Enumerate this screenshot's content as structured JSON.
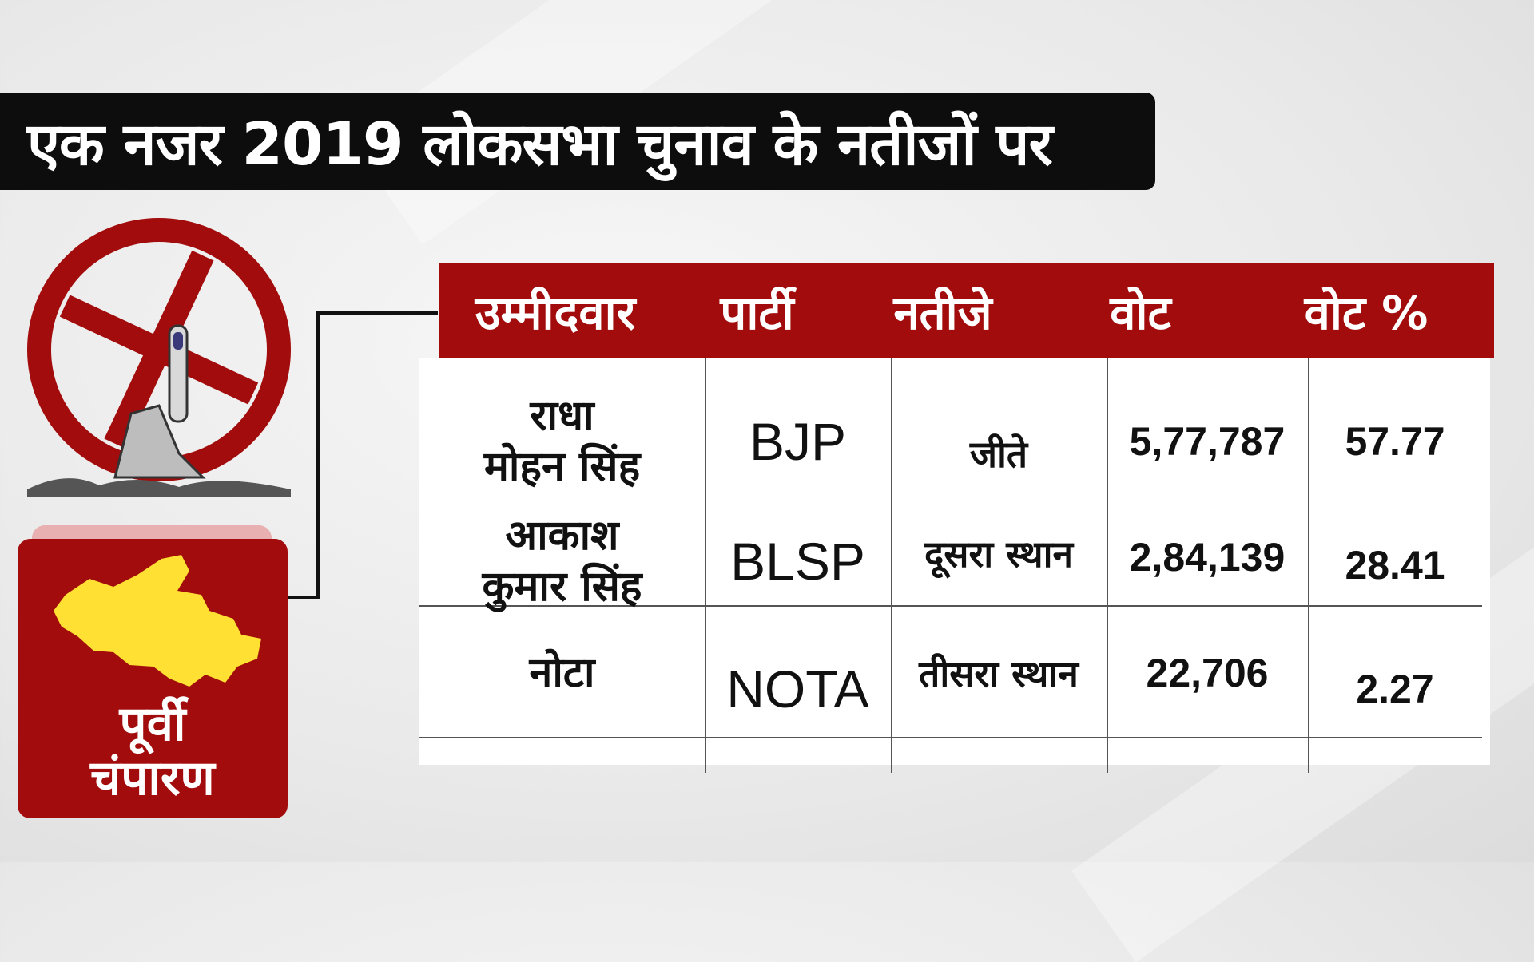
{
  "title": "एक नजर 2019 लोकसभा चुनाव के नतीजों पर",
  "region": {
    "line1": "पूर्वी",
    "line2": "चंपारण"
  },
  "colors": {
    "accent": "#a30c0c",
    "title_bg": "#0d0d0d",
    "map": "#ffe033"
  },
  "table": {
    "headers": [
      "उम्मीदवार",
      "पार्टी",
      "नतीजे",
      "वोट",
      "वोट %"
    ],
    "rows": [
      {
        "name_line1": "राधा",
        "name_line2": "मोहन सिंह",
        "party": "BJP",
        "result": "जीते",
        "votes": "5,77,787",
        "percent": "57.77"
      },
      {
        "name_line1": "आकाश",
        "name_line2": "कुमार सिंह",
        "party": "BLSP",
        "result": "दूसरा स्थान",
        "votes": "2,84,139",
        "percent": "28.41"
      },
      {
        "name_line1": "नोटा",
        "name_line2": "",
        "party": "NOTA",
        "result": "तीसरा स्थान",
        "votes": "22,706",
        "percent": "2.27"
      }
    ]
  },
  "icons": {
    "logo": "ballot-swastika-vote-icon",
    "map": "district-map-icon"
  }
}
